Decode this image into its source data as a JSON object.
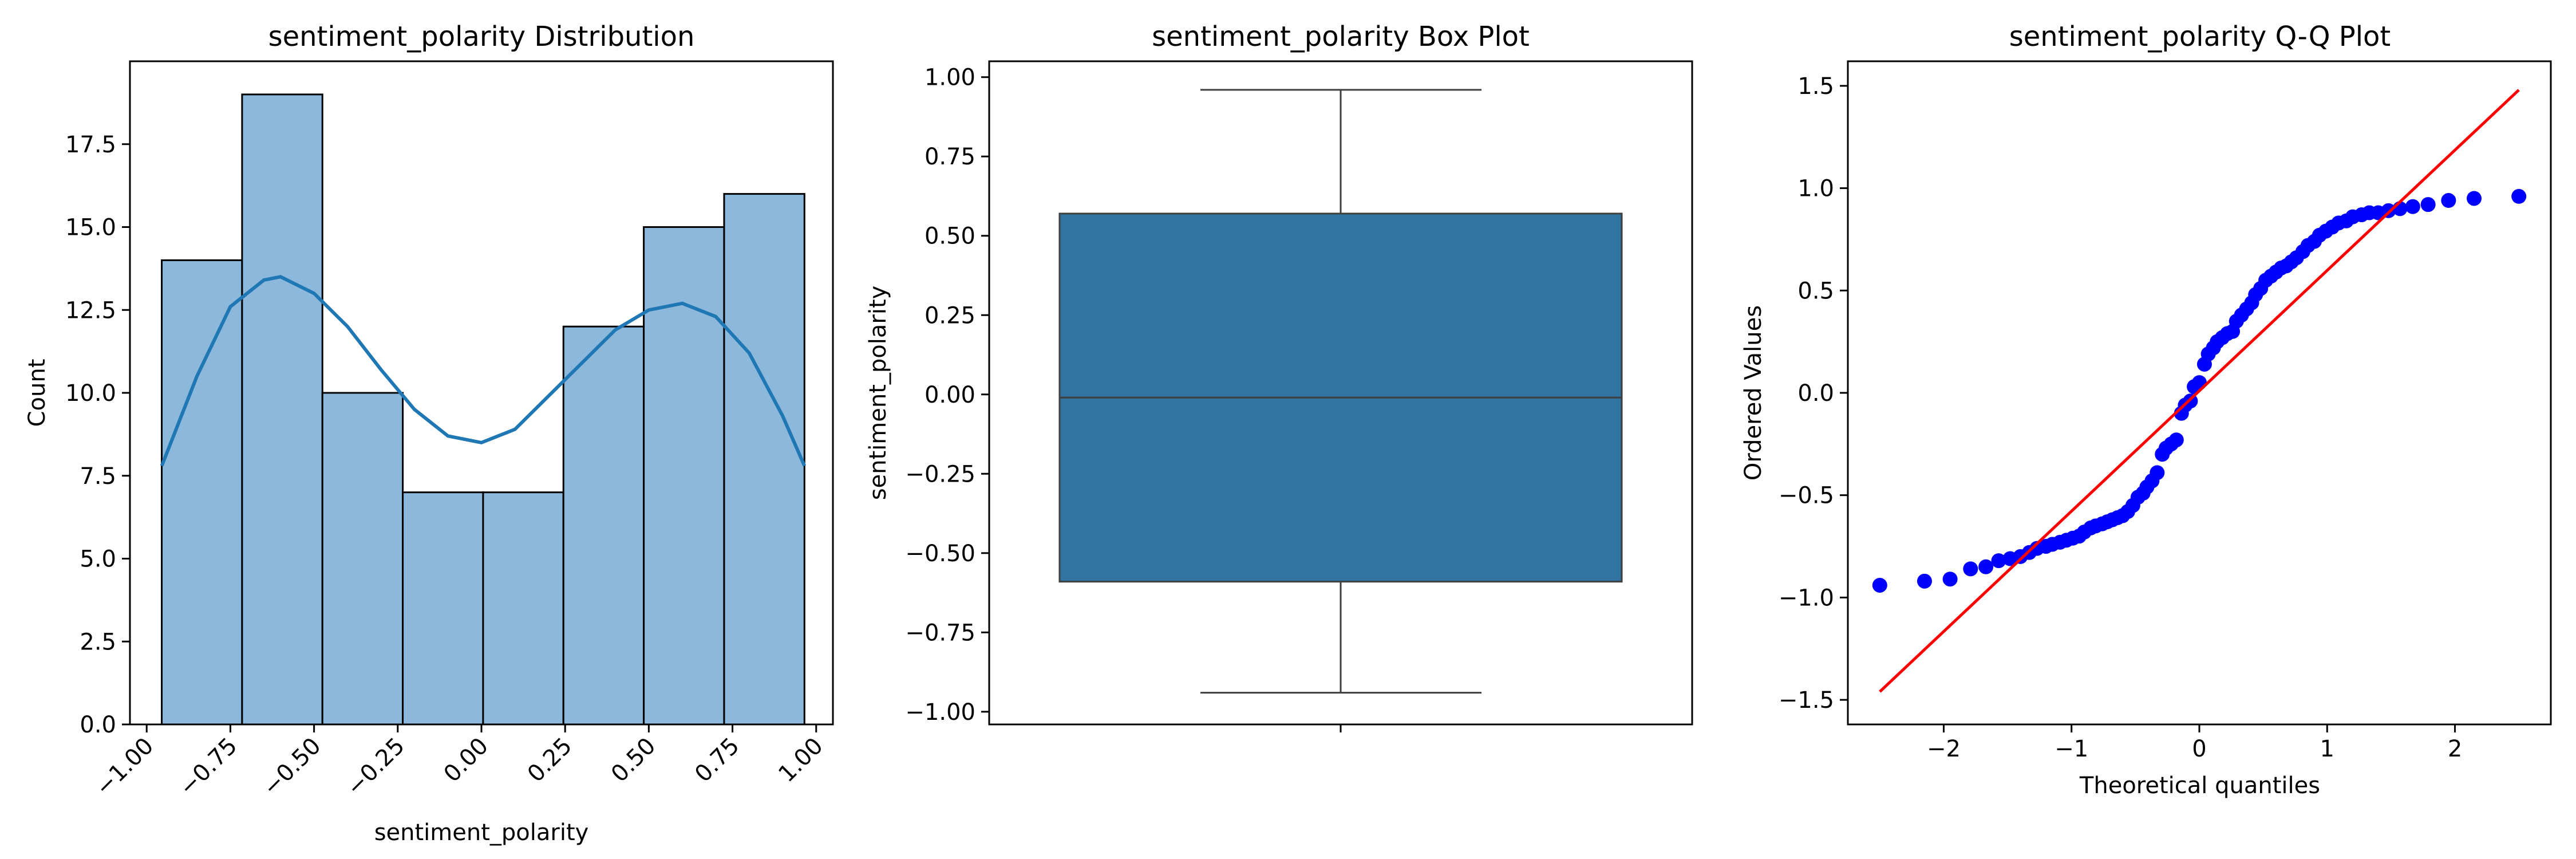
{
  "chart_data": [
    {
      "type": "bar",
      "title": "sentiment_polarity Distribution",
      "xlabel": "sentiment_polarity",
      "ylabel": "Count",
      "xlim": [
        -1.05,
        1.05
      ],
      "ylim": [
        0,
        20
      ],
      "xticks": [
        -1.0,
        -0.75,
        -0.5,
        -0.25,
        0.0,
        0.25,
        0.5,
        0.75,
        1.0
      ],
      "xtick_labels": [
        "−1.00",
        "−0.75",
        "−0.50",
        "−0.25",
        "0.00",
        "0.25",
        "0.50",
        "0.75",
        "1.00"
      ],
      "yticks": [
        0,
        2.5,
        5,
        7.5,
        10,
        12.5,
        15,
        17.5
      ],
      "ytick_labels": [
        "0.0",
        "2.5",
        "5.0",
        "7.5",
        "10.0",
        "12.5",
        "15.0",
        "17.5"
      ],
      "bin_edges": [
        -0.955,
        -0.715,
        -0.475,
        -0.235,
        0.005,
        0.245,
        0.485,
        0.725,
        0.965
      ],
      "counts": [
        14,
        19,
        10,
        7,
        7,
        12,
        15,
        16
      ],
      "kde": {
        "x": [
          -0.955,
          -0.85,
          -0.75,
          -0.65,
          -0.6,
          -0.5,
          -0.4,
          -0.3,
          -0.2,
          -0.1,
          0.0,
          0.1,
          0.2,
          0.3,
          0.4,
          0.5,
          0.6,
          0.7,
          0.8,
          0.9,
          0.965
        ],
        "y": [
          7.8,
          10.5,
          12.6,
          13.4,
          13.5,
          13.0,
          12.0,
          10.7,
          9.5,
          8.7,
          8.5,
          8.9,
          9.9,
          10.9,
          11.9,
          12.5,
          12.7,
          12.3,
          11.2,
          9.3,
          7.8
        ]
      },
      "bar_color": "#8cb8db",
      "line_color": "#1f77b4"
    },
    {
      "type": "box",
      "title": "sentiment_polarity Box Plot",
      "ylabel": "sentiment_polarity",
      "ylim": [
        -1.04,
        1.05
      ],
      "yticks": [
        -1.0,
        -0.75,
        -0.5,
        -0.25,
        0.0,
        0.25,
        0.5,
        0.75,
        1.0
      ],
      "ytick_labels": [
        "−1.00",
        "−0.75",
        "−0.50",
        "−0.25",
        "0.00",
        "0.25",
        "0.50",
        "0.75",
        "1.00"
      ],
      "whisker_low": -0.94,
      "q1": -0.59,
      "median": -0.01,
      "q3": 0.57,
      "whisker_high": 0.96,
      "box_color": "#3274a1"
    },
    {
      "type": "scatter",
      "title": "sentiment_polarity Q-Q Plot",
      "xlabel": "Theoretical quantiles",
      "ylabel": "Ordered Values",
      "xlim": [
        -2.75,
        2.75
      ],
      "ylim": [
        -1.62,
        1.62
      ],
      "xticks": [
        -2,
        -1,
        0,
        1,
        2
      ],
      "xtick_labels": [
        "−2",
        "−1",
        "0",
        "1",
        "2"
      ],
      "yticks": [
        -1.5,
        -1.0,
        -0.5,
        0.0,
        0.5,
        1.0,
        1.5
      ],
      "ytick_labels": [
        "−1.5",
        "−1.0",
        "−0.5",
        "0.0",
        "0.5",
        "1.0",
        "1.5"
      ],
      "fit_line": {
        "x": [
          -2.5,
          2.5
        ],
        "y": [
          -1.46,
          1.48
        ]
      },
      "points": {
        "x": [
          -2.5,
          -2.15,
          -1.95,
          -1.79,
          -1.67,
          -1.57,
          -1.48,
          -1.4,
          -1.33,
          -1.27,
          -1.2,
          -1.15,
          -1.09,
          -1.04,
          -0.99,
          -0.94,
          -0.9,
          -0.85,
          -0.81,
          -0.76,
          -0.72,
          -0.68,
          -0.64,
          -0.6,
          -0.56,
          -0.52,
          -0.48,
          -0.44,
          -0.41,
          -0.37,
          -0.33,
          -0.29,
          -0.26,
          -0.22,
          -0.18,
          -0.14,
          -0.11,
          -0.07,
          -0.04,
          0.0,
          0.04,
          0.07,
          0.11,
          0.14,
          0.18,
          0.22,
          0.26,
          0.29,
          0.33,
          0.37,
          0.41,
          0.44,
          0.48,
          0.52,
          0.56,
          0.6,
          0.64,
          0.68,
          0.72,
          0.76,
          0.81,
          0.85,
          0.9,
          0.94,
          0.99,
          1.04,
          1.09,
          1.15,
          1.2,
          1.27,
          1.33,
          1.4,
          1.48,
          1.57,
          1.67,
          1.79,
          1.95,
          2.15,
          2.5
        ],
        "y": [
          -0.94,
          -0.92,
          -0.91,
          -0.86,
          -0.85,
          -0.82,
          -0.81,
          -0.8,
          -0.78,
          -0.76,
          -0.75,
          -0.74,
          -0.73,
          -0.72,
          -0.71,
          -0.7,
          -0.68,
          -0.66,
          -0.65,
          -0.64,
          -0.63,
          -0.62,
          -0.61,
          -0.6,
          -0.58,
          -0.55,
          -0.51,
          -0.49,
          -0.46,
          -0.43,
          -0.39,
          -0.3,
          -0.27,
          -0.25,
          -0.23,
          -0.1,
          -0.06,
          -0.04,
          0.03,
          0.05,
          0.14,
          0.19,
          0.22,
          0.25,
          0.27,
          0.29,
          0.3,
          0.35,
          0.38,
          0.41,
          0.44,
          0.48,
          0.51,
          0.55,
          0.57,
          0.59,
          0.61,
          0.62,
          0.64,
          0.66,
          0.69,
          0.72,
          0.74,
          0.77,
          0.79,
          0.81,
          0.83,
          0.84,
          0.86,
          0.87,
          0.88,
          0.88,
          0.89,
          0.9,
          0.91,
          0.92,
          0.94,
          0.95,
          0.96
        ]
      },
      "point_color": "#0000ff",
      "line_color": "#ff0000"
    }
  ]
}
